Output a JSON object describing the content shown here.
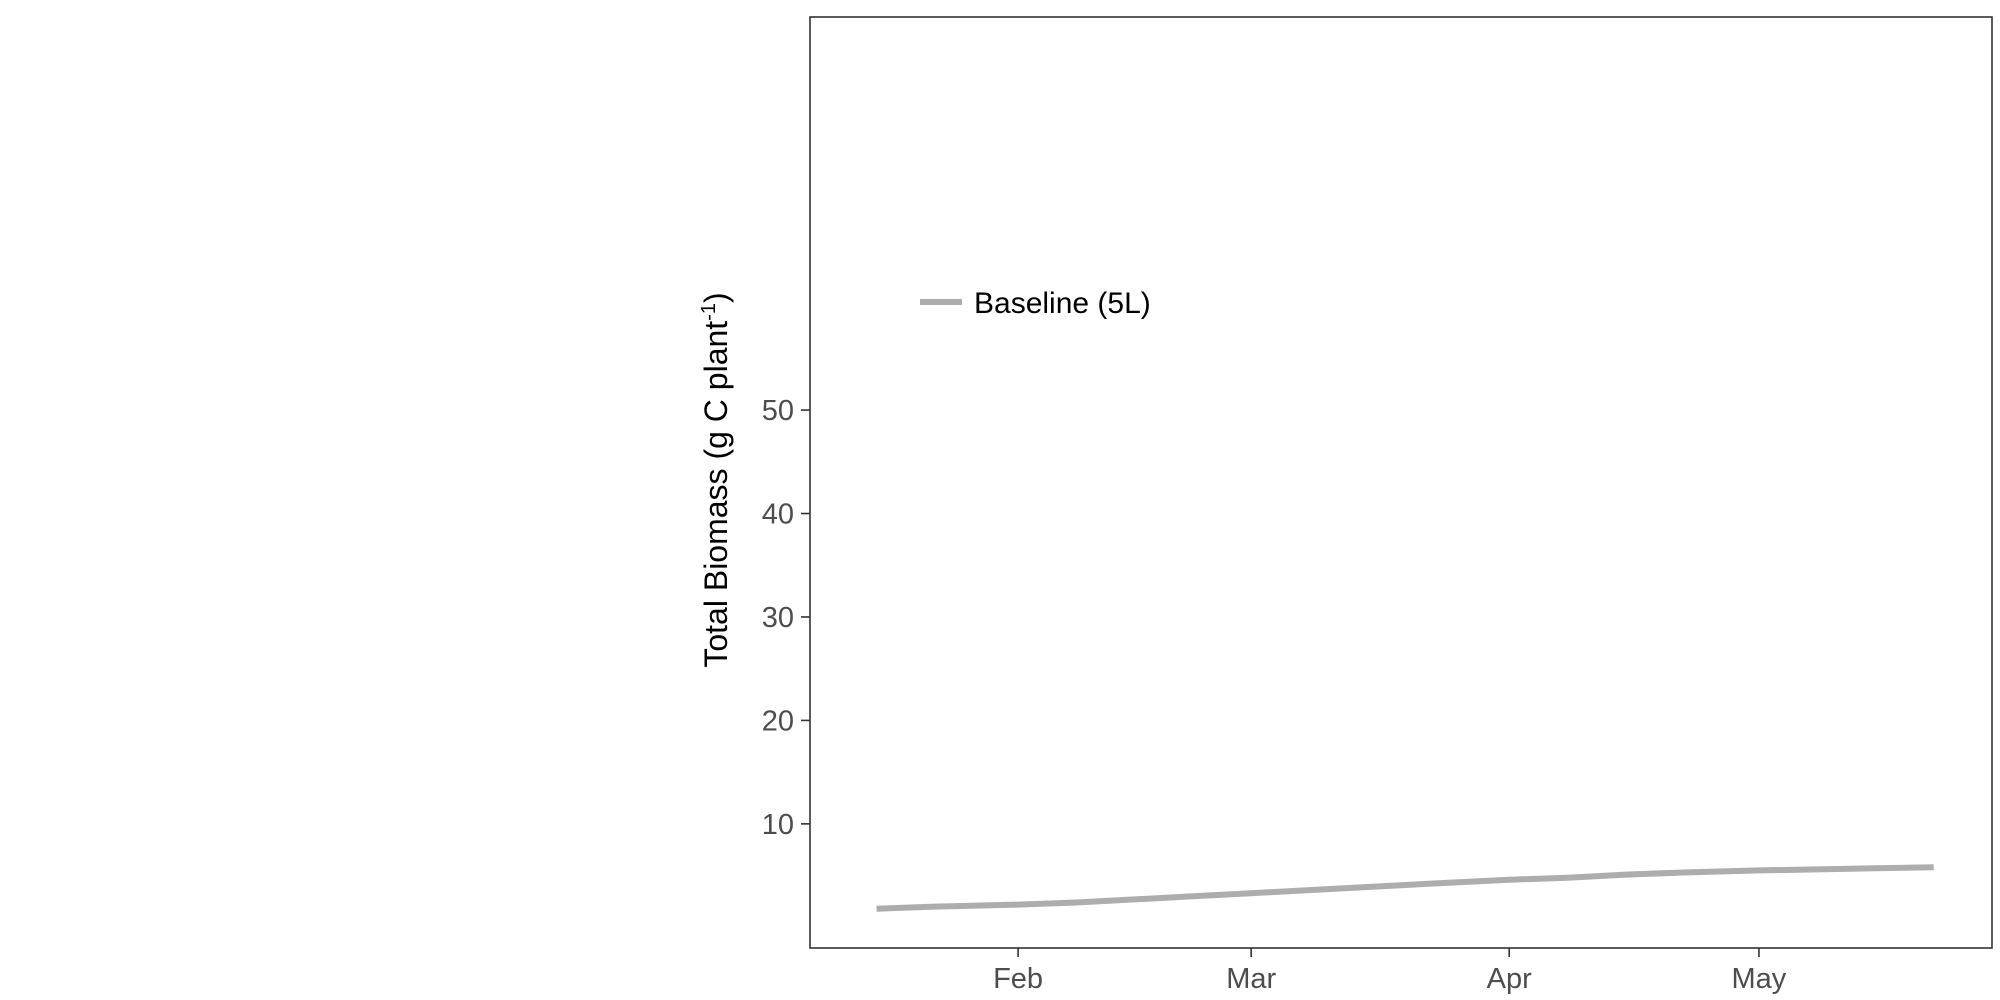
{
  "chart_data": {
    "type": "line",
    "title": "",
    "xlabel": "",
    "ylabel": "Total Biomass (g C plant",
    "ylabel_superscript": "-1",
    "ylabel_suffix": ")",
    "ylim": [
      -2,
      88
    ],
    "yticks": [
      10,
      20,
      30,
      40,
      50
    ],
    "xlim": [
      "2021-01-07",
      "2021-05-29"
    ],
    "xticks": [
      {
        "date": "2021-02-01",
        "label": "Feb"
      },
      {
        "date": "2021-03-01",
        "label": "Mar"
      },
      {
        "date": "2021-04-01",
        "label": "Apr"
      },
      {
        "date": "2021-05-01",
        "label": "May"
      }
    ],
    "grid": false,
    "legend_placement": "top-left",
    "series": [
      {
        "name": "Baseline (5L)",
        "color": "#adadad",
        "points": [
          {
            "x": "2021-01-15",
            "y": 1.8
          },
          {
            "x": "2021-01-22",
            "y": 2.0
          },
          {
            "x": "2021-02-01",
            "y": 2.2
          },
          {
            "x": "2021-02-08",
            "y": 2.4
          },
          {
            "x": "2021-02-15",
            "y": 2.7
          },
          {
            "x": "2021-02-22",
            "y": 3.0
          },
          {
            "x": "2021-03-01",
            "y": 3.3
          },
          {
            "x": "2021-03-08",
            "y": 3.6
          },
          {
            "x": "2021-03-15",
            "y": 3.9
          },
          {
            "x": "2021-03-22",
            "y": 4.2
          },
          {
            "x": "2021-04-01",
            "y": 4.6
          },
          {
            "x": "2021-04-08",
            "y": 4.8
          },
          {
            "x": "2021-04-15",
            "y": 5.1
          },
          {
            "x": "2021-04-22",
            "y": 5.3
          },
          {
            "x": "2021-05-01",
            "y": 5.5
          },
          {
            "x": "2021-05-08",
            "y": 5.6
          },
          {
            "x": "2021-05-15",
            "y": 5.7
          },
          {
            "x": "2021-05-22",
            "y": 5.8
          }
        ]
      }
    ]
  }
}
